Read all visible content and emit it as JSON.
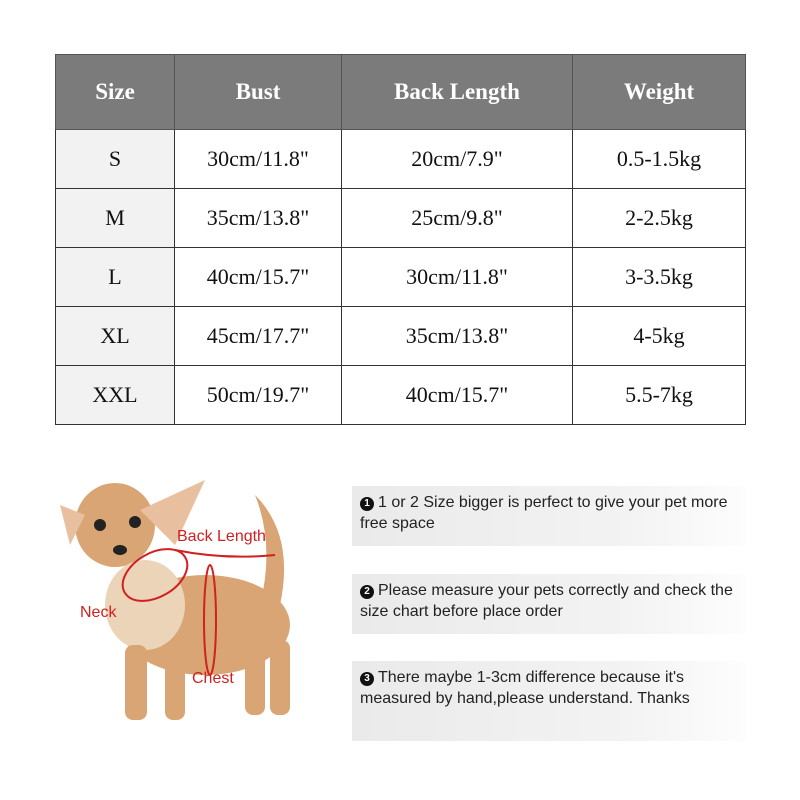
{
  "table": {
    "headers": [
      "Size",
      "Bust",
      "Back Length",
      "Weight"
    ],
    "rows": [
      [
        "S",
        "30cm/11.8\"",
        "20cm/7.9\"",
        "0.5-1.5kg"
      ],
      [
        "M",
        "35cm/13.8\"",
        "25cm/9.8\"",
        "2-2.5kg"
      ],
      [
        "L",
        "40cm/15.7\"",
        "30cm/11.8\"",
        "3-3.5kg"
      ],
      [
        "XL",
        "45cm/17.7\"",
        "35cm/13.8\"",
        "4-5kg"
      ],
      [
        "XXL",
        "50cm/19.7\"",
        "40cm/15.7\"",
        "5.5-7kg"
      ]
    ]
  },
  "diagram": {
    "labels": {
      "back": "Back Length",
      "neck": "Neck",
      "chest": "Chest"
    }
  },
  "notes": [
    {
      "num": "1",
      "text": "1 or 2 Size bigger is perfect to give your pet more free space"
    },
    {
      "num": "2",
      "text": "Please measure your pets correctly and check the size chart before place order"
    },
    {
      "num": "3",
      "text": "There maybe 1-3cm difference because it's measured by hand,please understand. Thanks"
    }
  ]
}
